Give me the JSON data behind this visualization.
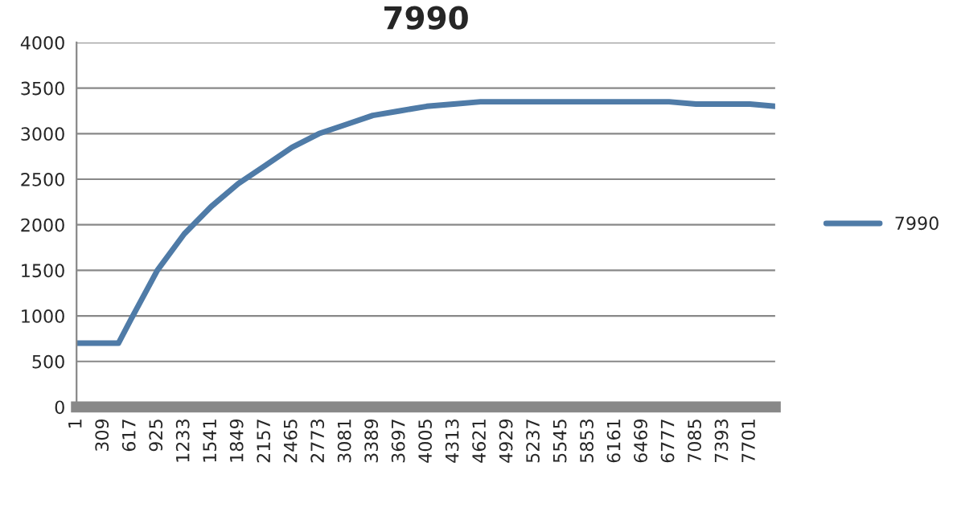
{
  "chart_data": {
    "type": "line",
    "title": "7990",
    "x": [
      1,
      480,
      617,
      925,
      1233,
      1541,
      1849,
      2157,
      2465,
      2773,
      3081,
      3389,
      3697,
      4005,
      4313,
      4621,
      4929,
      5237,
      5545,
      5853,
      6161,
      6469,
      6777,
      7085,
      7393,
      7701,
      7990
    ],
    "series": [
      {
        "name": "7990",
        "color": "#4f7ba7",
        "values": [
          700,
          700,
          950,
          1500,
          1900,
          2200,
          2450,
          2650,
          2850,
          3000,
          3100,
          3200,
          3250,
          3300,
          3325,
          3350,
          3350,
          3350,
          3350,
          3350,
          3350,
          3350,
          3350,
          3325,
          3325,
          3325,
          3300
        ]
      }
    ],
    "xlim": [
      1,
      7990
    ],
    "xticks": [
      1,
      309,
      617,
      925,
      1233,
      1541,
      1849,
      2157,
      2465,
      2773,
      3081,
      3389,
      3697,
      4005,
      4313,
      4621,
      4929,
      5237,
      5545,
      5853,
      6161,
      6469,
      6777,
      7085,
      7393,
      7701
    ],
    "ylim": [
      0,
      4000
    ],
    "yticks": [
      0,
      500,
      1000,
      1500,
      2000,
      2500,
      3000,
      3500,
      4000
    ],
    "grid": "y",
    "legend": "right",
    "marker": "none",
    "line_style": "solid"
  }
}
